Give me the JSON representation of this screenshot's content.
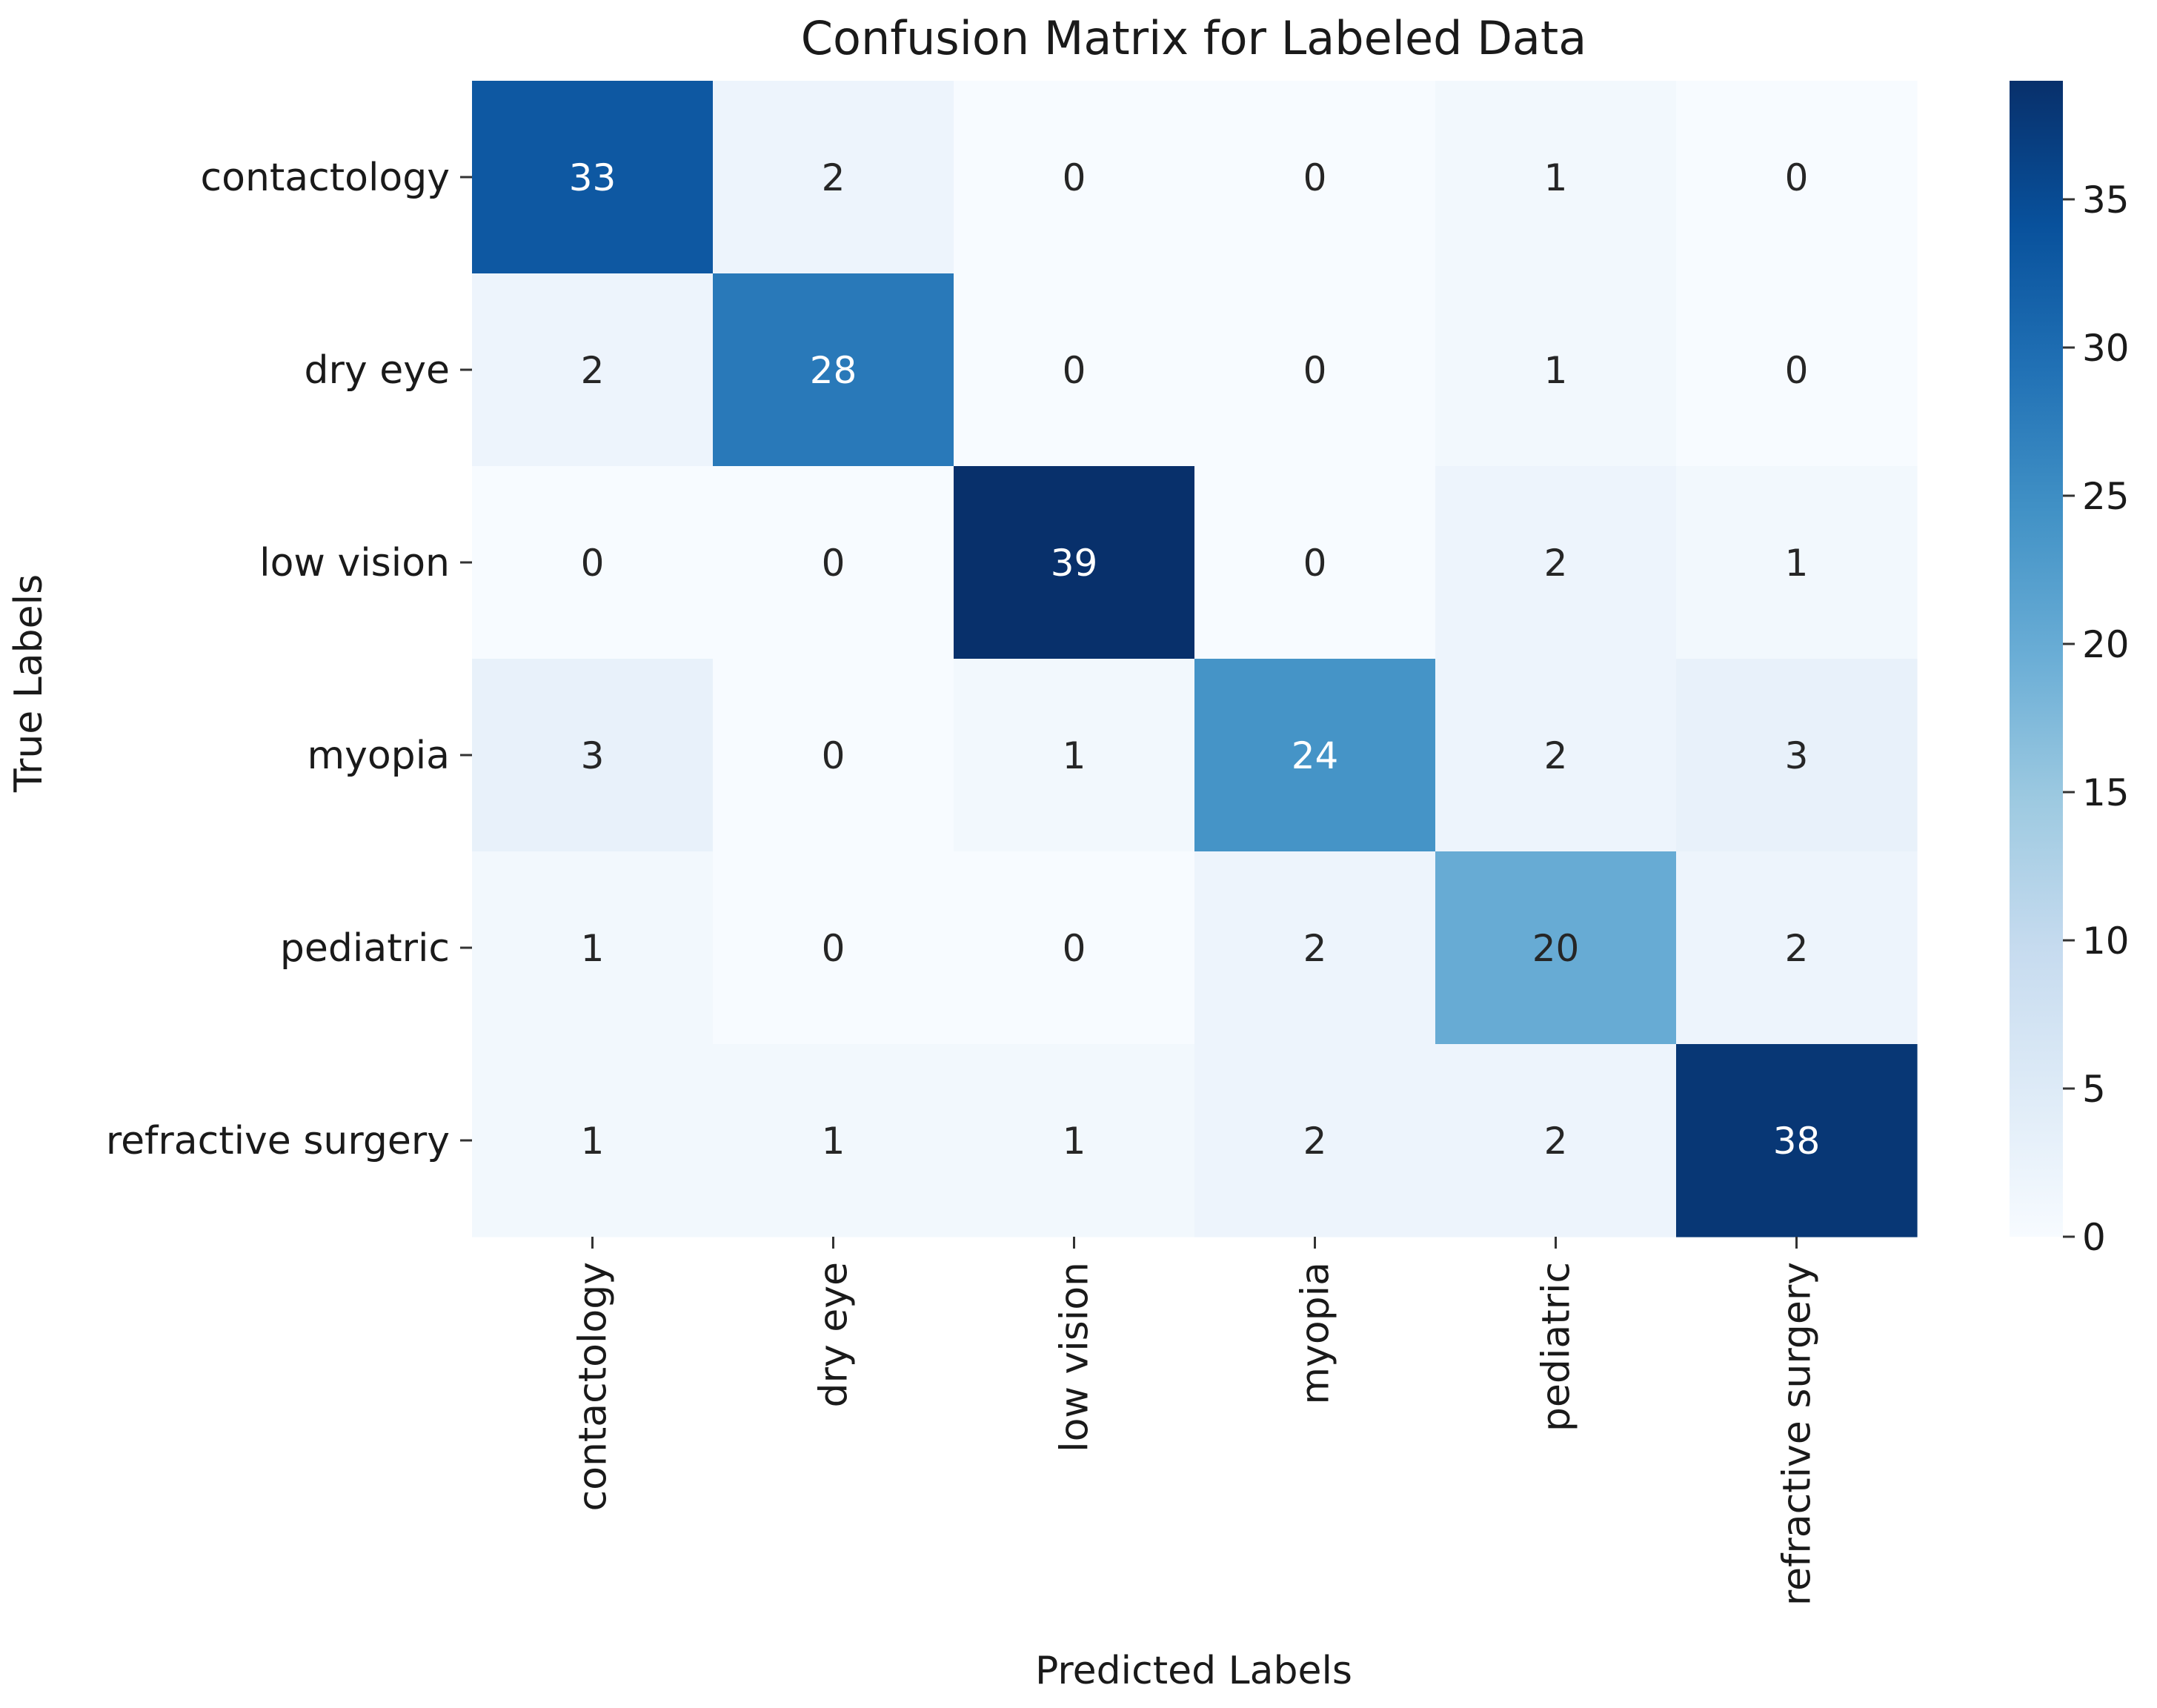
{
  "chart_data": {
    "type": "heatmap",
    "title": "Confusion Matrix for Labeled Data",
    "xlabel": "Predicted Labels",
    "ylabel": "True Labels",
    "x_categories": [
      "contactology",
      "dry eye",
      "low vision",
      "myopia",
      "pediatric",
      "refractive surgery"
    ],
    "y_categories": [
      "contactology",
      "dry eye",
      "low vision",
      "myopia",
      "pediatric",
      "refractive surgery"
    ],
    "matrix": [
      [
        33,
        2,
        0,
        0,
        1,
        0
      ],
      [
        2,
        28,
        0,
        0,
        1,
        0
      ],
      [
        0,
        0,
        39,
        0,
        2,
        1
      ],
      [
        3,
        0,
        1,
        24,
        2,
        3
      ],
      [
        1,
        0,
        0,
        2,
        20,
        2
      ],
      [
        1,
        1,
        1,
        2,
        2,
        38
      ]
    ],
    "colormap": "Blues",
    "colorbar": {
      "min": 0,
      "max": 39,
      "ticks": [
        0,
        5,
        10,
        15,
        20,
        25,
        30,
        35
      ]
    }
  }
}
